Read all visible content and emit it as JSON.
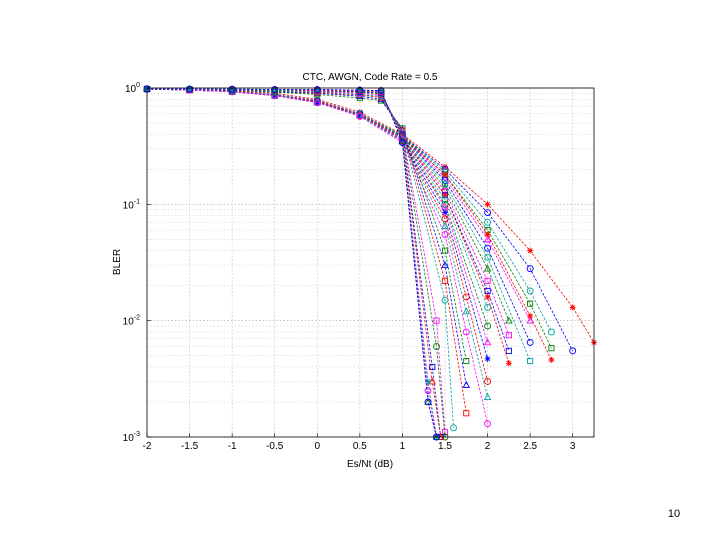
{
  "page": {
    "number": "10"
  },
  "chart_data": {
    "type": "line",
    "title": "CTC, AWGN, Code Rate = 0.5",
    "xlabel": "Es/Nt (dB)",
    "ylabel": "BLER",
    "xlim": [
      -2,
      3.25
    ],
    "ylim": [
      0.001,
      1
    ],
    "yscale": "log",
    "grid": true,
    "legend": "none",
    "xticks": [
      "-2",
      "-1.5",
      "-1",
      "-0.5",
      "0",
      "0.5",
      "1",
      "1.5",
      "2",
      "2.5",
      "3"
    ],
    "yticks": [
      {
        "base": "10",
        "exp": "0",
        "value": 1
      },
      {
        "base": "10",
        "exp": "-1",
        "value": 0.1
      },
      {
        "base": "10",
        "exp": "-2",
        "value": 0.01
      },
      {
        "base": "10",
        "exp": "-3",
        "value": 0.001
      }
    ],
    "series": [
      {
        "color": "#ff0000",
        "marker": "star",
        "x": [
          -2,
          -1.5,
          -1,
          -0.5,
          0,
          0.5,
          1,
          1.5,
          2,
          2.5,
          3,
          3.25
        ],
        "y": [
          0.98,
          0.96,
          0.94,
          0.9,
          0.8,
          0.62,
          0.4,
          0.21,
          0.1,
          0.04,
          0.013,
          0.0065
        ]
      },
      {
        "color": "#0000ff",
        "marker": "circle",
        "x": [
          -2,
          -1.5,
          -1,
          -0.5,
          0,
          0.5,
          1,
          1.5,
          2,
          2.5,
          3
        ],
        "y": [
          0.98,
          0.96,
          0.93,
          0.88,
          0.78,
          0.6,
          0.39,
          0.2,
          0.085,
          0.028,
          0.0055
        ]
      },
      {
        "color": "#00a0a0",
        "marker": "circle",
        "x": [
          -2,
          -1.5,
          -1,
          -0.5,
          0,
          0.5,
          1,
          1.5,
          2,
          2.5,
          2.75
        ],
        "y": [
          0.98,
          0.96,
          0.93,
          0.88,
          0.78,
          0.6,
          0.39,
          0.19,
          0.07,
          0.018,
          0.008
        ]
      },
      {
        "color": "#008000",
        "marker": "square",
        "x": [
          -2,
          -1.5,
          -1,
          -0.5,
          0,
          0.5,
          1,
          1.5,
          2,
          2.5,
          2.75
        ],
        "y": [
          0.98,
          0.96,
          0.93,
          0.87,
          0.77,
          0.6,
          0.39,
          0.18,
          0.06,
          0.014,
          0.0058
        ]
      },
      {
        "color": "#ff00ff",
        "marker": "triangle",
        "x": [
          -2,
          -1.5,
          -1,
          -0.5,
          0,
          0.5,
          1,
          1.5,
          2,
          2.5
        ],
        "y": [
          0.98,
          0.96,
          0.93,
          0.87,
          0.77,
          0.6,
          0.38,
          0.17,
          0.05,
          0.01
        ]
      },
      {
        "color": "#ff0000",
        "marker": "star",
        "x": [
          -2,
          -1.5,
          -1,
          -0.5,
          0,
          0.5,
          1,
          1.5,
          2,
          2.5,
          2.75
        ],
        "y": [
          0.98,
          0.96,
          0.93,
          0.87,
          0.77,
          0.6,
          0.38,
          0.18,
          0.055,
          0.011,
          0.0046
        ]
      },
      {
        "color": "#0000ff",
        "marker": "circle",
        "x": [
          -2,
          -1.5,
          -1,
          -0.5,
          0,
          0.5,
          1,
          1.5,
          2,
          2.5
        ],
        "y": [
          0.98,
          0.96,
          0.93,
          0.87,
          0.76,
          0.6,
          0.38,
          0.16,
          0.042,
          0.0065
        ]
      },
      {
        "color": "#00a0a0",
        "marker": "square",
        "x": [
          -2,
          -1.5,
          -1,
          -0.5,
          0,
          0.5,
          1,
          1.5,
          2,
          2.5
        ],
        "y": [
          0.98,
          0.96,
          0.93,
          0.87,
          0.76,
          0.6,
          0.38,
          0.15,
          0.035,
          0.0045
        ]
      },
      {
        "color": "#008000",
        "marker": "triangle",
        "x": [
          -2,
          -1.5,
          -1,
          -0.5,
          0,
          0.5,
          1,
          1.5,
          2,
          2.25
        ],
        "y": [
          0.98,
          0.96,
          0.93,
          0.86,
          0.76,
          0.59,
          0.37,
          0.14,
          0.028,
          0.01
        ]
      },
      {
        "color": "#ff00ff",
        "marker": "square",
        "x": [
          -2,
          -1.5,
          -1,
          -0.5,
          0,
          0.5,
          1,
          1.5,
          2,
          2.25
        ],
        "y": [
          0.98,
          0.96,
          0.93,
          0.86,
          0.76,
          0.59,
          0.37,
          0.13,
          0.022,
          0.0075
        ]
      },
      {
        "color": "#0000ff",
        "marker": "square",
        "x": [
          -2,
          -1.5,
          -1,
          -0.5,
          0,
          0.5,
          1,
          1.5,
          2,
          2.25
        ],
        "y": [
          0.98,
          0.96,
          0.93,
          0.86,
          0.76,
          0.59,
          0.37,
          0.12,
          0.018,
          0.0055
        ]
      },
      {
        "color": "#ff0000",
        "marker": "star",
        "x": [
          -2,
          -1.5,
          -1,
          -0.5,
          0,
          0.5,
          1,
          1.5,
          2,
          2.25
        ],
        "y": [
          0.98,
          0.96,
          0.93,
          0.86,
          0.76,
          0.59,
          0.37,
          0.12,
          0.016,
          0.0043
        ]
      },
      {
        "color": "#00a0a0",
        "marker": "circle",
        "x": [
          -2,
          -1.5,
          -1,
          -0.5,
          0,
          0.5,
          1,
          1.5,
          2
        ],
        "y": [
          0.98,
          0.96,
          0.93,
          0.86,
          0.75,
          0.58,
          0.36,
          0.11,
          0.013
        ]
      },
      {
        "color": "#008000",
        "marker": "circle",
        "x": [
          -2,
          -1.5,
          -1,
          -0.5,
          0,
          0.5,
          1,
          1.5,
          2
        ],
        "y": [
          0.98,
          0.96,
          0.93,
          0.86,
          0.75,
          0.58,
          0.36,
          0.1,
          0.009
        ]
      },
      {
        "color": "#ff00ff",
        "marker": "triangle",
        "x": [
          -2,
          -1.5,
          -1,
          -0.5,
          0,
          0.5,
          1,
          1.5,
          2
        ],
        "y": [
          0.98,
          0.96,
          0.93,
          0.86,
          0.75,
          0.58,
          0.36,
          0.095,
          0.0065
        ]
      },
      {
        "color": "#0000ff",
        "marker": "star",
        "x": [
          -2,
          -1.5,
          -1,
          -0.5,
          0,
          0.5,
          1,
          1.5,
          2
        ],
        "y": [
          0.98,
          0.96,
          0.93,
          0.86,
          0.75,
          0.58,
          0.35,
          0.085,
          0.0047
        ]
      },
      {
        "color": "#ff0000",
        "marker": "circle",
        "x": [
          -2,
          -1.5,
          -1,
          -0.5,
          0,
          0.5,
          1,
          1.5,
          1.75,
          2
        ],
        "y": [
          0.98,
          0.96,
          0.93,
          0.86,
          0.75,
          0.58,
          0.35,
          0.075,
          0.016,
          0.003
        ]
      },
      {
        "color": "#00a0a0",
        "marker": "triangle",
        "x": [
          -2,
          -1.5,
          -1,
          -0.5,
          0,
          0.5,
          1,
          1.5,
          1.75,
          2
        ],
        "y": [
          0.98,
          0.96,
          0.93,
          0.86,
          0.75,
          0.58,
          0.35,
          0.065,
          0.012,
          0.0022
        ]
      },
      {
        "color": "#ff00ff",
        "marker": "circle",
        "x": [
          -2,
          -1.5,
          -1,
          -0.5,
          0,
          0.5,
          1,
          1.5,
          1.75,
          2
        ],
        "y": [
          0.98,
          0.96,
          0.93,
          0.86,
          0.75,
          0.57,
          0.34,
          0.055,
          0.008,
          0.0013
        ]
      },
      {
        "color": "#008000",
        "marker": "square",
        "x": [
          -2,
          -1.5,
          -1,
          -0.5,
          0,
          0.5,
          0.75,
          1,
          1.5,
          1.75
        ],
        "y": [
          0.98,
          0.97,
          0.95,
          0.92,
          0.88,
          0.82,
          0.78,
          0.45,
          0.04,
          0.0045
        ]
      },
      {
        "color": "#0000ff",
        "marker": "triangle",
        "x": [
          -2,
          -1.5,
          -1,
          -0.5,
          0,
          0.5,
          0.75,
          1,
          1.5,
          1.75
        ],
        "y": [
          0.98,
          0.97,
          0.96,
          0.93,
          0.9,
          0.85,
          0.8,
          0.44,
          0.03,
          0.0028
        ]
      },
      {
        "color": "#ff0000",
        "marker": "square",
        "x": [
          -2,
          -1.5,
          -1,
          -0.5,
          0,
          0.5,
          0.75,
          1,
          1.5,
          1.75
        ],
        "y": [
          0.98,
          0.97,
          0.96,
          0.94,
          0.91,
          0.87,
          0.83,
          0.43,
          0.022,
          0.0016
        ]
      },
      {
        "color": "#00a0a0",
        "marker": "circle",
        "x": [
          -2,
          -1.5,
          -1,
          -0.5,
          0,
          0.5,
          0.75,
          1,
          1.5,
          1.6
        ],
        "y": [
          0.98,
          0.97,
          0.96,
          0.94,
          0.92,
          0.88,
          0.85,
          0.42,
          0.015,
          0.0012
        ]
      },
      {
        "color": "#ff00ff",
        "marker": "square",
        "x": [
          -2,
          -1.5,
          -1,
          -0.5,
          0,
          0.5,
          0.75,
          1,
          1.4,
          1.5
        ],
        "y": [
          0.98,
          0.97,
          0.96,
          0.95,
          0.93,
          0.9,
          0.87,
          0.41,
          0.01,
          0.0011
        ]
      },
      {
        "color": "#008000",
        "marker": "circle",
        "x": [
          -2,
          -1.5,
          -1,
          -0.5,
          0,
          0.5,
          0.75,
          1,
          1.4,
          1.5
        ],
        "y": [
          0.98,
          0.97,
          0.96,
          0.95,
          0.94,
          0.92,
          0.89,
          0.4,
          0.006,
          0.001
        ]
      },
      {
        "color": "#0000ff",
        "marker": "square",
        "x": [
          -2,
          -1.5,
          -1,
          -0.5,
          0,
          0.5,
          0.75,
          1,
          1.35,
          1.45
        ],
        "y": [
          0.98,
          0.97,
          0.96,
          0.96,
          0.95,
          0.93,
          0.91,
          0.39,
          0.004,
          0.001
        ]
      },
      {
        "color": "#ff0000",
        "marker": "triangle",
        "x": [
          -2,
          -1.5,
          -1,
          -0.5,
          0,
          0.5,
          0.75,
          1,
          1.35,
          1.45
        ],
        "y": [
          0.98,
          0.97,
          0.97,
          0.96,
          0.95,
          0.94,
          0.92,
          0.38,
          0.003,
          0.001
        ]
      },
      {
        "color": "#00a0a0",
        "marker": "star",
        "x": [
          -2,
          -1.5,
          -1,
          -0.5,
          0,
          0.5,
          0.75,
          1,
          1.3,
          1.4
        ],
        "y": [
          0.98,
          0.97,
          0.97,
          0.96,
          0.96,
          0.95,
          0.93,
          0.37,
          0.003,
          0.001
        ]
      },
      {
        "color": "#ff00ff",
        "marker": "circle",
        "x": [
          -2,
          -1.5,
          -1,
          -0.5,
          0,
          0.5,
          0.75,
          1,
          1.3,
          1.4
        ],
        "y": [
          0.98,
          0.97,
          0.97,
          0.97,
          0.96,
          0.95,
          0.94,
          0.36,
          0.0025,
          0.001
        ]
      },
      {
        "color": "#008000",
        "marker": "triangle",
        "x": [
          -2,
          -1.5,
          -1,
          -0.5,
          0,
          0.5,
          0.75,
          1,
          1.3,
          1.4
        ],
        "y": [
          0.98,
          0.98,
          0.97,
          0.97,
          0.97,
          0.96,
          0.95,
          0.35,
          0.002,
          0.001
        ]
      },
      {
        "color": "#0000ff",
        "marker": "circle",
        "x": [
          -2,
          -1.5,
          -1,
          -0.5,
          0,
          0.5,
          0.75,
          1,
          1.3,
          1.4
        ],
        "y": [
          0.98,
          0.98,
          0.98,
          0.97,
          0.97,
          0.96,
          0.95,
          0.34,
          0.002,
          0.001
        ]
      }
    ]
  }
}
